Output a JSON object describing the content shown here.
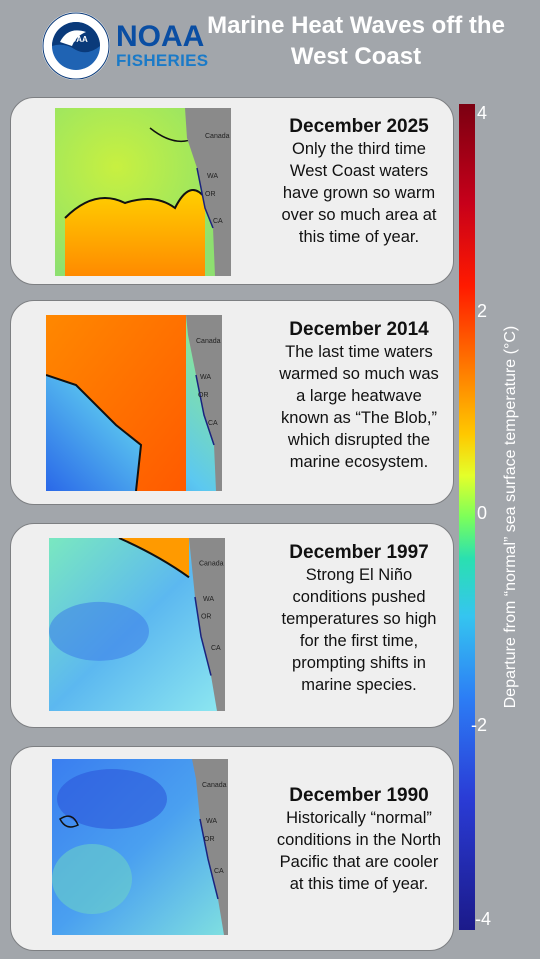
{
  "header": {
    "logo_text": "NOAA",
    "brand_line1": "NOAA",
    "brand_line2": "FISHERIES",
    "title": "Marine Heat Waves off the West Coast"
  },
  "cards": [
    {
      "year": "December 2025",
      "description": "Only the third time West Coast waters have grown so warm over so much area at this time of year.",
      "map_labels": [
        "Canada",
        "WA",
        "OR",
        "CA"
      ]
    },
    {
      "year": "December 2014",
      "description": "The last time waters warmed so much was a large heatwave known as “The Blob,” which disrupted the marine ecosystem.",
      "map_labels": [
        "Canada",
        "WA",
        "OR",
        "CA"
      ]
    },
    {
      "year": "December 1997",
      "description": "Strong El Niño conditions pushed temperatures so high for the first time, prompting shifts in marine species.",
      "map_labels": [
        "Canada",
        "WA",
        "OR",
        "CA"
      ]
    },
    {
      "year": "December 1990",
      "description": "Historically “normal” conditions in the North Pacific that are cooler at this time of year.",
      "map_labels": [
        "Canada",
        "WA",
        "OR",
        "CA"
      ]
    }
  ],
  "legend": {
    "label": "Departure from “normal” sea surface temperature (°C)",
    "ticks": [
      "4",
      "2",
      "0",
      "-2",
      "-4"
    ],
    "colors": [
      "#7b0011",
      "#ff1a00",
      "#ffc800",
      "#7cff5a",
      "#35c5f0",
      "#2c7df5",
      "#1b1a8a"
    ]
  },
  "colors": {
    "background": "#a2a6ab",
    "card": "#efefef",
    "brand_blue": "#0a4ea3"
  }
}
